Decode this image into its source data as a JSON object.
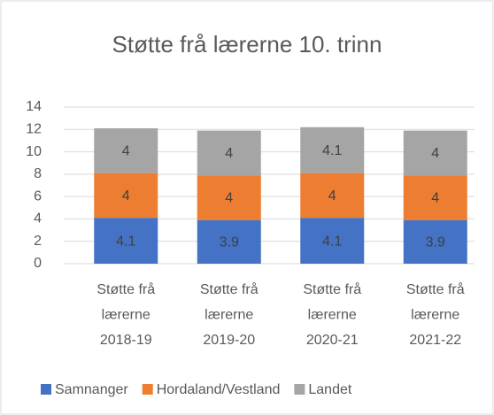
{
  "chart_data": {
    "type": "bar",
    "stacked": true,
    "title": "Støtte frå lærerne 10. trinn",
    "categories": [
      "Støtte frå lærerne 2018-19",
      "Støtte frå lærerne 2019-20",
      "Støtte frå lærerne 2020-21",
      "Støtte frå lærerne 2021-22"
    ],
    "series": [
      {
        "name": "Samnanger",
        "color": "#4472c4",
        "values": [
          4.1,
          3.9,
          4.1,
          3.9
        ]
      },
      {
        "name": "Hordaland/Vestland",
        "color": "#ed7d31",
        "values": [
          4,
          4,
          4,
          4
        ]
      },
      {
        "name": "Landet",
        "color": "#a5a5a5",
        "values": [
          4,
          4,
          4.1,
          4
        ]
      }
    ],
    "ylim": [
      0,
      14
    ],
    "yticks": [
      0,
      2,
      4,
      6,
      8,
      10,
      12,
      14
    ],
    "grid": true,
    "legend": "bottom"
  }
}
